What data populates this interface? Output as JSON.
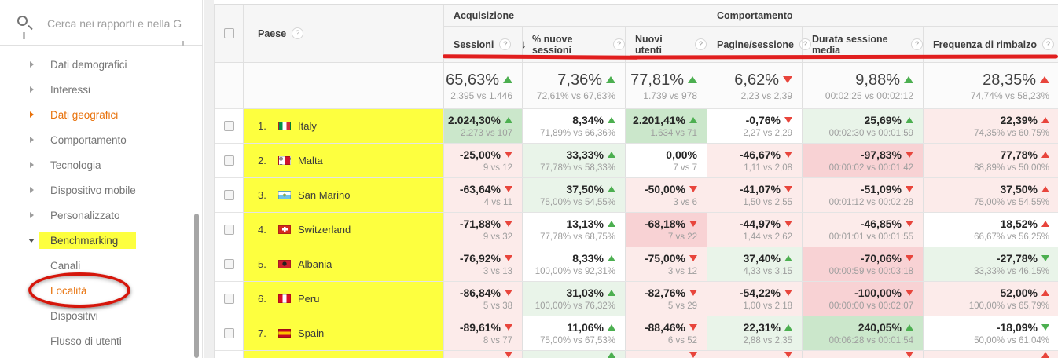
{
  "icons": {
    "help": "?",
    "sort_desc": "↓",
    "search": "magnifier"
  },
  "annotations": {
    "highlight_yellow": "#fdff3f",
    "circle_red": "#d5170c",
    "underline_red": "#e11e1e"
  },
  "sidebar": {
    "search_value": "Cerca nei rapporti e nella G",
    "items": [
      {
        "label": "Dati demografici",
        "state": "collapsed",
        "color": "default",
        "child": false
      },
      {
        "label": "Interessi",
        "state": "collapsed",
        "color": "default",
        "child": false
      },
      {
        "label": "Dati geografici",
        "state": "collapsed",
        "color": "orange",
        "child": false
      },
      {
        "label": "Comportamento",
        "state": "collapsed",
        "color": "default",
        "child": false
      },
      {
        "label": "Tecnologia",
        "state": "collapsed",
        "color": "default",
        "child": false
      },
      {
        "label": "Dispositivo mobile",
        "state": "collapsed",
        "color": "default",
        "child": false
      },
      {
        "label": "Personalizzato",
        "state": "collapsed",
        "color": "default",
        "child": false
      },
      {
        "label": "Benchmarking",
        "state": "expanded",
        "color": "dark",
        "child": false,
        "highlighted": true
      },
      {
        "label": "Canali",
        "state": "none",
        "color": "default",
        "child": true
      },
      {
        "label": "Località",
        "state": "none",
        "color": "orange",
        "child": true,
        "circled": true
      },
      {
        "label": "Dispositivi",
        "state": "none",
        "color": "default",
        "child": true
      },
      {
        "label": "Flusso di utenti",
        "state": "none",
        "color": "default",
        "child": true
      }
    ]
  },
  "table": {
    "groups": [
      {
        "label": "Acquisizione"
      },
      {
        "label": "Comportamento"
      }
    ],
    "paese_header": "Paese",
    "metric_headers": [
      {
        "label": "Sessioni",
        "sorted": "desc"
      },
      {
        "label": "% nuove sessioni",
        "sorted": "none"
      },
      {
        "label": "Nuovi utenti",
        "sorted": "none"
      },
      {
        "label": "Pagine/sessione",
        "sorted": "none"
      },
      {
        "label": "Durata sessione media",
        "sorted": "none"
      },
      {
        "label": "Frequenza di rimbalzo",
        "sorted": "none"
      }
    ],
    "summary_cells": [
      {
        "v": "65,63%",
        "t": "up",
        "c": "green",
        "s": "2.395 vs 1.446"
      },
      {
        "v": "7,36%",
        "t": "up",
        "c": "green",
        "s": "72,61% vs 67,63%"
      },
      {
        "v": "77,81%",
        "t": "up",
        "c": "green",
        "s": "1.739 vs 978"
      },
      {
        "v": "6,62%",
        "t": "down",
        "c": "red",
        "s": "2,23 vs 2,39"
      },
      {
        "v": "9,88%",
        "t": "up",
        "c": "green",
        "s": "00:02:25 vs 00:02:12"
      },
      {
        "v": "28,35%",
        "t": "up",
        "c": "red",
        "s": "74,74% vs 58,23%"
      }
    ],
    "rows": [
      {
        "rank": "1.",
        "country": "Italy",
        "flag": "italy",
        "partial": false,
        "cells": [
          {
            "v": "2.024,30%",
            "t": "up",
            "c": "green",
            "bg": "green2",
            "s": "2.273 vs 107"
          },
          {
            "v": "8,34%",
            "t": "up",
            "c": "green",
            "bg": "white",
            "s": "71,89% vs 66,36%"
          },
          {
            "v": "2.201,41%",
            "t": "up",
            "c": "green",
            "bg": "green2",
            "s": "1.634 vs 71"
          },
          {
            "v": "-0,76%",
            "t": "down",
            "c": "red",
            "bg": "white",
            "s": "2,27 vs 2,29"
          },
          {
            "v": "25,69%",
            "t": "up",
            "c": "green",
            "bg": "green1",
            "s": "00:02:30 vs 00:01:59"
          },
          {
            "v": "22,39%",
            "t": "up",
            "c": "red",
            "bg": "pink1",
            "s": "74,35% vs 60,75%"
          }
        ]
      },
      {
        "rank": "2.",
        "country": "Malta",
        "flag": "malta",
        "partial": false,
        "cells": [
          {
            "v": "-25,00%",
            "t": "down",
            "c": "red",
            "bg": "pink1",
            "s": "9 vs 12"
          },
          {
            "v": "33,33%",
            "t": "up",
            "c": "green",
            "bg": "green1",
            "s": "77,78% vs 58,33%"
          },
          {
            "v": "0,00%",
            "t": "none",
            "c": "",
            "bg": "white",
            "s": "7 vs 7"
          },
          {
            "v": "-46,67%",
            "t": "down",
            "c": "red",
            "bg": "pink1",
            "s": "1,11 vs 2,08"
          },
          {
            "v": "-97,83%",
            "t": "down",
            "c": "red",
            "bg": "pink2",
            "s": "00:00:02 vs 00:01:42"
          },
          {
            "v": "77,78%",
            "t": "up",
            "c": "red",
            "bg": "pink1",
            "s": "88,89% vs 50,00%"
          }
        ]
      },
      {
        "rank": "3.",
        "country": "San Marino",
        "flag": "sanmarino",
        "partial": false,
        "cells": [
          {
            "v": "-63,64%",
            "t": "down",
            "c": "red",
            "bg": "pink1",
            "s": "4 vs 11"
          },
          {
            "v": "37,50%",
            "t": "up",
            "c": "green",
            "bg": "green1",
            "s": "75,00% vs 54,55%"
          },
          {
            "v": "-50,00%",
            "t": "down",
            "c": "red",
            "bg": "pink1",
            "s": "3 vs 6"
          },
          {
            "v": "-41,07%",
            "t": "down",
            "c": "red",
            "bg": "pink1",
            "s": "1,50 vs 2,55"
          },
          {
            "v": "-51,09%",
            "t": "down",
            "c": "red",
            "bg": "pink1",
            "s": "00:01:12 vs 00:02:28"
          },
          {
            "v": "37,50%",
            "t": "up",
            "c": "red",
            "bg": "pink1",
            "s": "75,00% vs 54,55%"
          }
        ]
      },
      {
        "rank": "4.",
        "country": "Switzerland",
        "flag": "switzerland",
        "partial": false,
        "cells": [
          {
            "v": "-71,88%",
            "t": "down",
            "c": "red",
            "bg": "pink1",
            "s": "9 vs 32"
          },
          {
            "v": "13,13%",
            "t": "up",
            "c": "green",
            "bg": "white",
            "s": "77,78% vs 68,75%"
          },
          {
            "v": "-68,18%",
            "t": "down",
            "c": "red",
            "bg": "pink2",
            "s": "7 vs 22"
          },
          {
            "v": "-44,97%",
            "t": "down",
            "c": "red",
            "bg": "pink1",
            "s": "1,44 vs 2,62"
          },
          {
            "v": "-46,85%",
            "t": "down",
            "c": "red",
            "bg": "pink1",
            "s": "00:01:01 vs 00:01:55"
          },
          {
            "v": "18,52%",
            "t": "up",
            "c": "red",
            "bg": "white",
            "s": "66,67% vs 56,25%"
          }
        ]
      },
      {
        "rank": "5.",
        "country": "Albania",
        "flag": "albania",
        "partial": false,
        "cells": [
          {
            "v": "-76,92%",
            "t": "down",
            "c": "red",
            "bg": "pink1",
            "s": "3 vs 13"
          },
          {
            "v": "8,33%",
            "t": "up",
            "c": "green",
            "bg": "white",
            "s": "100,00% vs 92,31%"
          },
          {
            "v": "-75,00%",
            "t": "down",
            "c": "red",
            "bg": "pink1",
            "s": "3 vs 12"
          },
          {
            "v": "37,40%",
            "t": "up",
            "c": "green",
            "bg": "green1",
            "s": "4,33 vs 3,15"
          },
          {
            "v": "-70,06%",
            "t": "down",
            "c": "red",
            "bg": "pink2",
            "s": "00:00:59 vs 00:03:18"
          },
          {
            "v": "-27,78%",
            "t": "down",
            "c": "green",
            "bg": "green1",
            "s": "33,33% vs 46,15%"
          }
        ]
      },
      {
        "rank": "6.",
        "country": "Peru",
        "flag": "peru",
        "partial": false,
        "cells": [
          {
            "v": "-86,84%",
            "t": "down",
            "c": "red",
            "bg": "pink1",
            "s": "5 vs 38"
          },
          {
            "v": "31,03%",
            "t": "up",
            "c": "green",
            "bg": "green1",
            "s": "100,00% vs 76,32%"
          },
          {
            "v": "-82,76%",
            "t": "down",
            "c": "red",
            "bg": "pink1",
            "s": "5 vs 29"
          },
          {
            "v": "-54,22%",
            "t": "down",
            "c": "red",
            "bg": "pink1",
            "s": "1,00 vs 2,18"
          },
          {
            "v": "-100,00%",
            "t": "down",
            "c": "red",
            "bg": "pink2",
            "s": "00:00:00 vs 00:02:07"
          },
          {
            "v": "52,00%",
            "t": "up",
            "c": "red",
            "bg": "pink1",
            "s": "100,00% vs 65,79%"
          }
        ]
      },
      {
        "rank": "7.",
        "country": "Spain",
        "flag": "spain",
        "partial": false,
        "cells": [
          {
            "v": "-89,61%",
            "t": "down",
            "c": "red",
            "bg": "pink1",
            "s": "8 vs 77"
          },
          {
            "v": "11,06%",
            "t": "up",
            "c": "green",
            "bg": "white",
            "s": "75,00% vs 67,53%"
          },
          {
            "v": "-88,46%",
            "t": "down",
            "c": "red",
            "bg": "pink1",
            "s": "6 vs 52"
          },
          {
            "v": "22,31%",
            "t": "up",
            "c": "green",
            "bg": "green1",
            "s": "2,88 vs 2,35"
          },
          {
            "v": "240,05%",
            "t": "up",
            "c": "green",
            "bg": "green2",
            "s": "00:06:28 vs 00:01:54"
          },
          {
            "v": "-18,09%",
            "t": "down",
            "c": "green",
            "bg": "white",
            "s": "50,00% vs 61,04%"
          }
        ]
      },
      {
        "rank": "",
        "country": "",
        "flag": "none",
        "partial": true,
        "cells": [
          {
            "v": "",
            "t": "down",
            "c": "red",
            "bg": "pink1",
            "s": ""
          },
          {
            "v": "",
            "t": "up",
            "c": "green",
            "bg": "green1",
            "s": ""
          },
          {
            "v": "",
            "t": "down",
            "c": "red",
            "bg": "pink1",
            "s": ""
          },
          {
            "v": "",
            "t": "down",
            "c": "red",
            "bg": "pink1",
            "s": ""
          },
          {
            "v": "",
            "t": "down",
            "c": "red",
            "bg": "pink1",
            "s": ""
          },
          {
            "v": "",
            "t": "up",
            "c": "red",
            "bg": "pink1",
            "s": ""
          }
        ]
      }
    ]
  }
}
